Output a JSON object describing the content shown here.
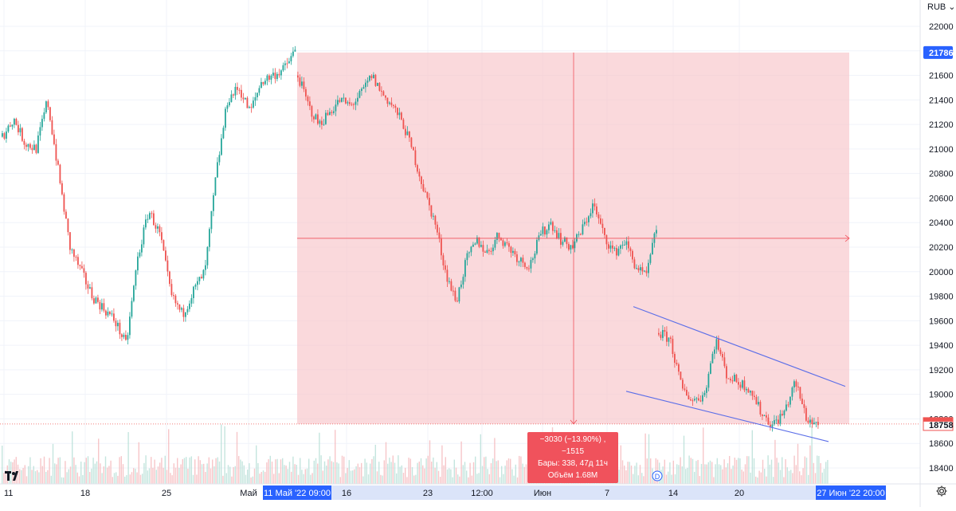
{
  "header": {
    "currency_label": "RUB",
    "currency_arrow": "⌄"
  },
  "chart_data": {
    "type": "candlestick",
    "ylim": [
      18300,
      22250
    ],
    "y_ticks": [
      22000,
      21800,
      21600,
      21400,
      21200,
      21000,
      20800,
      20600,
      20400,
      20200,
      20000,
      19800,
      19600,
      19400,
      19200,
      19000,
      18800,
      18600,
      18400
    ],
    "price_labels": {
      "top_label": "21786",
      "current_label": "18758",
      "current_value": 18758,
      "top_value": 21786
    },
    "x_tick_labels": [
      "11",
      "18",
      "25",
      "Май",
      "16",
      "23",
      "12:00",
      "Июн",
      "7",
      "14",
      "20"
    ],
    "x_highlight_left": {
      "date": "11 Май '22",
      "time": "09:00"
    },
    "x_highlight_right": {
      "date": "27 Июн '22",
      "time": "20:00"
    },
    "measure": {
      "top_price": 21786,
      "bottom_price": 18758,
      "mid_price": 20272,
      "line1": "−3030 (−13.90%) , −1515",
      "line2": "Бары: 338, 47д 11ч",
      "line3": "Объём 1.68M"
    },
    "channel_upper": {
      "from_price": 19715,
      "to_price": 19065
    },
    "channel_lower": {
      "from_price": 19025,
      "to_price": 18615
    },
    "series_anchors": [
      [
        21100,
        21250,
        21050,
        21000,
        21400,
        20800,
        20200,
        20000,
        19800,
        19700,
        19600,
        19400,
        20100,
        20500,
        20300,
        19800,
        19650,
        19850,
        20000,
        20800,
        21400,
        21500,
        21300,
        21550,
        21600,
        21650,
        21800
      ],
      [
        21600,
        21350,
        21200,
        21300,
        21400,
        21350,
        21450,
        21600,
        21450,
        21350,
        21200,
        20950,
        20650,
        20400,
        20000,
        19750,
        20100,
        20250,
        20150,
        20300,
        20200,
        20100,
        20050,
        20300,
        20400,
        20250,
        20200,
        20350,
        20550,
        20300,
        20150,
        20250,
        20050,
        19950,
        20350
      ],
      [
        19500,
        19450,
        19050,
        18950,
        19000,
        19450,
        19150,
        19100,
        19050,
        18850,
        18750,
        18850,
        19100,
        18800,
        18750
      ]
    ],
    "event_marker": "D"
  }
}
